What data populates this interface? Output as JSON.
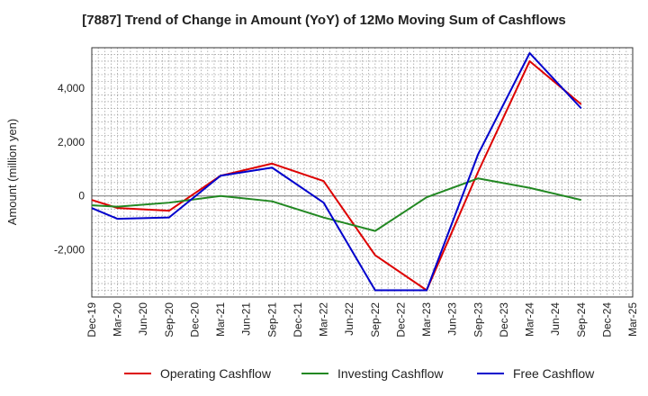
{
  "chart_data": {
    "type": "line",
    "title": "[7887]  Trend of Change in Amount (YoY) of 12Mo Moving Sum of Cashflows",
    "xlabel": "",
    "ylabel": "Amount (million yen)",
    "ylim": [
      -3750,
      5500
    ],
    "yticks": [
      -2000,
      0,
      2000,
      4000
    ],
    "ytick_labels": [
      "-2,000",
      "0",
      "2,000",
      "4,000"
    ],
    "categories": [
      "Dec-19",
      "Mar-20",
      "Jun-20",
      "Sep-20",
      "Dec-20",
      "Mar-21",
      "Jun-21",
      "Sep-21",
      "Dec-21",
      "Mar-22",
      "Jun-22",
      "Sep-22",
      "Dec-22",
      "Mar-23",
      "Jun-23",
      "Sep-23",
      "Dec-23",
      "Mar-24",
      "Jun-24",
      "Sep-24",
      "Dec-24",
      "Mar-25"
    ],
    "grid": true,
    "legend_position": "bottom",
    "series": [
      {
        "name": "Operating Cashflow",
        "color": "#dd0000",
        "values": [
          -150,
          -450,
          null,
          -550,
          null,
          750,
          null,
          1200,
          null,
          550,
          null,
          -2200,
          null,
          -3500,
          null,
          900,
          null,
          5000,
          null,
          3400,
          null,
          null
        ]
      },
      {
        "name": "Investing Cashflow",
        "color": "#228822",
        "values": [
          -350,
          -400,
          null,
          -250,
          null,
          0,
          null,
          -200,
          null,
          -800,
          null,
          -1300,
          null,
          -50,
          null,
          650,
          null,
          300,
          null,
          -150,
          null,
          null
        ]
      },
      {
        "name": "Free Cashflow",
        "color": "#0000cc",
        "values": [
          -450,
          -850,
          null,
          -800,
          null,
          750,
          null,
          1050,
          null,
          -250,
          null,
          -3500,
          null,
          -3500,
          null,
          1550,
          null,
          5300,
          null,
          3250,
          null,
          null
        ]
      }
    ]
  }
}
